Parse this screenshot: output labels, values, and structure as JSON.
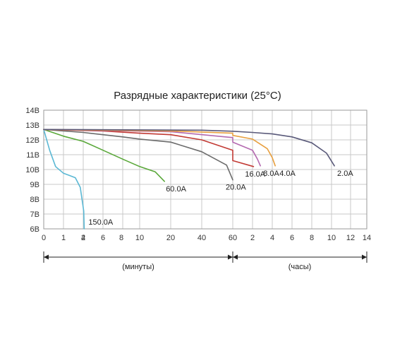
{
  "chart_data": {
    "type": "line",
    "title": "Разрядные характеристики (25°С)",
    "y_ticks": [
      "14В",
      "13В",
      "12В",
      "11В",
      "10В",
      "9В",
      "8В",
      "7В",
      "6В"
    ],
    "ylim": [
      6,
      14
    ],
    "x_ticks": [
      "0",
      "1",
      "2",
      "4",
      "6",
      "8",
      "10",
      "20",
      "40",
      "60",
      "2",
      "4",
      "6",
      "8",
      "10",
      "12",
      "14"
    ],
    "x_regions": [
      {
        "label": "(минуты)",
        "from_tick": 0,
        "to_tick": 9
      },
      {
        "label": "(часы)",
        "from_tick": 9,
        "to_tick": 16
      }
    ],
    "grid": true,
    "series": [
      {
        "name": "150.0А",
        "color": "#5bb8d4",
        "points": [
          [
            0,
            12.7
          ],
          [
            0.3,
            11.3
          ],
          [
            0.6,
            10.2
          ],
          [
            1.0,
            9.75
          ],
          [
            1.3,
            9.6
          ],
          [
            1.6,
            9.45
          ],
          [
            1.85,
            8.8
          ],
          [
            2.05,
            7.2
          ],
          [
            2.1,
            6.0
          ]
        ]
      },
      {
        "name": "60.0А",
        "color": "#5aa83a",
        "points": [
          [
            0,
            12.7
          ],
          [
            1,
            12.25
          ],
          [
            2,
            11.9
          ],
          [
            4,
            11.3
          ],
          [
            6,
            10.7
          ],
          [
            8,
            10.2
          ],
          [
            9,
            9.85
          ],
          [
            9.6,
            9.2
          ]
        ]
      },
      {
        "name": "20.0А",
        "color": "#6c6c6c",
        "points": [
          [
            0,
            12.7
          ],
          [
            2,
            12.5
          ],
          [
            4,
            12.35
          ],
          [
            6,
            12.2
          ],
          [
            8,
            12.05
          ],
          [
            10,
            11.85
          ],
          [
            20,
            11.2
          ],
          [
            36,
            10.3
          ],
          [
            40,
            9.3
          ]
        ]
      },
      {
        "name": "16.0А",
        "color": "#c23a34",
        "points": [
          [
            0,
            12.7
          ],
          [
            4,
            12.6
          ],
          [
            8,
            12.45
          ],
          [
            10,
            12.35
          ],
          [
            20,
            12.0
          ],
          [
            40,
            11.3
          ],
          [
            60,
            10.6
          ],
          [
            2.1,
            10.2
          ]
        ]
      },
      {
        "name": "8.0А",
        "color": "#b46ab0",
        "points": [
          [
            0,
            12.7
          ],
          [
            10,
            12.55
          ],
          [
            40,
            12.15
          ],
          [
            60,
            11.85
          ],
          [
            2,
            11.3
          ],
          [
            2.5,
            10.7
          ],
          [
            2.8,
            10.25
          ]
        ]
      },
      {
        "name": "4.0А",
        "color": "#e8a040",
        "points": [
          [
            0,
            12.7
          ],
          [
            10,
            12.6
          ],
          [
            40,
            12.45
          ],
          [
            60,
            12.3
          ],
          [
            2,
            12.05
          ],
          [
            3.5,
            11.4
          ],
          [
            4,
            10.8
          ],
          [
            4.3,
            10.25
          ]
        ]
      },
      {
        "name": "2.0А",
        "color": "#5a5a7a",
        "points": [
          [
            0,
            12.7
          ],
          [
            20,
            12.65
          ],
          [
            60,
            12.58
          ],
          [
            2,
            12.5
          ],
          [
            4,
            12.4
          ],
          [
            6,
            12.2
          ],
          [
            8,
            11.8
          ],
          [
            9.5,
            11.1
          ],
          [
            10.3,
            10.25
          ]
        ]
      }
    ]
  }
}
